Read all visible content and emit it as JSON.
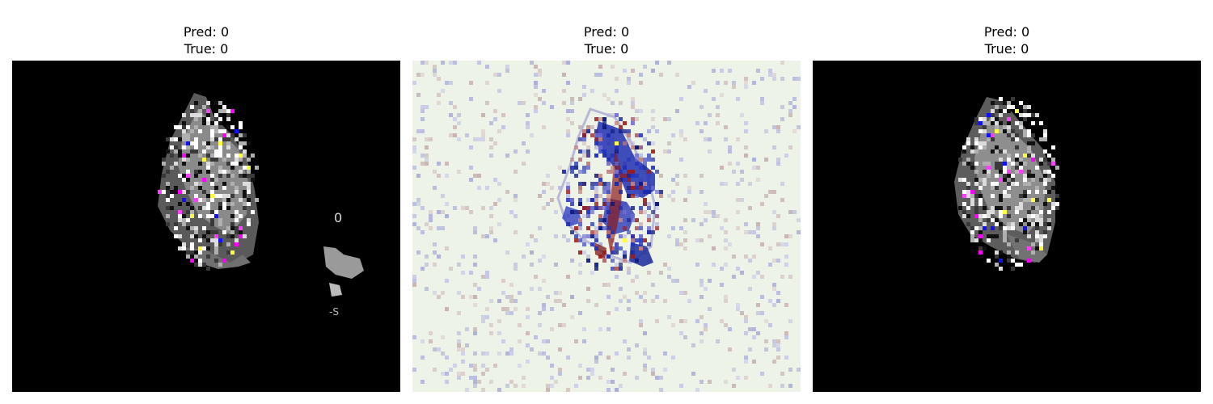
{
  "panels": [
    {
      "pred_label": "Pred: 0",
      "true_label": "True: 0",
      "background_color": "#000000",
      "style": "grayscale-with-highlights"
    },
    {
      "pred_label": "Pred: 0",
      "true_label": "True: 0",
      "background_color": "#eef3e8",
      "style": "diverging-heatmap"
    },
    {
      "pred_label": "Pred: 0",
      "true_label": "True: 0",
      "background_color": "#000000",
      "style": "grayscale-with-highlights"
    }
  ]
}
